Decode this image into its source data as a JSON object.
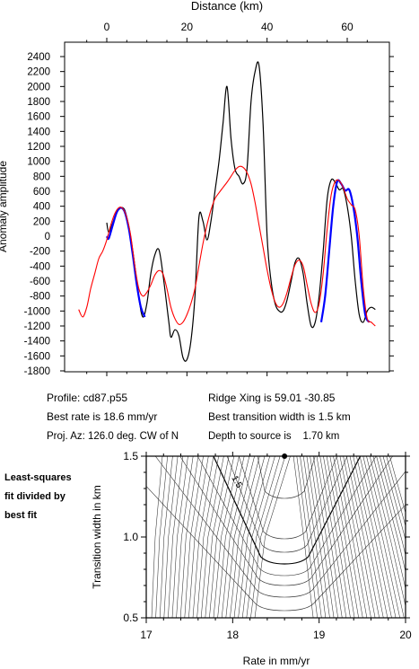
{
  "top_plot": {
    "xlabel": "Distance (km)",
    "ylabel": "Anomaly amplitude",
    "x_ticks": [
      "0",
      "20",
      "40",
      "60"
    ],
    "y_ticks": [
      "2400",
      "2200",
      "2000",
      "1800",
      "1600",
      "1400",
      "1200",
      "1000",
      "800",
      "600",
      "400",
      "200",
      "0",
      "-200",
      "-400",
      "-600",
      "-800",
      "-1000",
      "-1200",
      "-1400",
      "-1600",
      "-1800"
    ]
  },
  "info": {
    "profile": "Profile: cd87.p55",
    "best_rate": "Best rate is 18.6 mm/yr",
    "proj_az": "Proj. Az: 126.0 deg. CW of N",
    "ridge_xing": "Ridge Xing is 59.01 -30.85",
    "best_width": "Best transition width is 1.5 km",
    "depth": "Depth to source is    1.70 km"
  },
  "bottom_plot": {
    "side_note": [
      "Least-squares",
      "fit divided by",
      "best fit"
    ],
    "xlabel": "Rate in mm/yr",
    "ylabel": "Transition width in km",
    "x_ticks": [
      "17",
      "18",
      "19",
      "20"
    ],
    "y_ticks": [
      "1.5",
      "1.0",
      "0.5"
    ],
    "contour_label": "1.5"
  },
  "chart_data": [
    {
      "type": "line",
      "xlabel": "Distance (km)",
      "ylabel": "Anomaly amplitude",
      "xlim": [
        -7,
        68
      ],
      "ylim": [
        -1800,
        2500
      ],
      "colors": {
        "observed": "#000000",
        "model": "#ff0000",
        "fit": "#0000ff"
      },
      "series": [
        {
          "key": "observed",
          "x": [
            0,
            0.5,
            1.5,
            2.5,
            4,
            5,
            6.5,
            8,
            9,
            10,
            11,
            12,
            13,
            14,
            15.5,
            16,
            17,
            18,
            19,
            20,
            21,
            22,
            23,
            24,
            25,
            26,
            27,
            28,
            29,
            30,
            31,
            32,
            33,
            34,
            35,
            36,
            37,
            38,
            39,
            40,
            41,
            42,
            43,
            44,
            45,
            46,
            47,
            48,
            49,
            50,
            51,
            52,
            53,
            54,
            55,
            56,
            57,
            58,
            59,
            60,
            61,
            62,
            63,
            64,
            65,
            66,
            67
          ],
          "y": [
            180,
            50,
            180,
            320,
            380,
            250,
            -200,
            -820,
            -1080,
            -900,
            -500,
            -250,
            -180,
            -500,
            -1150,
            -1350,
            -1250,
            -1330,
            -1620,
            -1650,
            -1400,
            -800,
            250,
            200,
            -50,
            200,
            600,
            1000,
            1500,
            2000,
            1300,
            900,
            800,
            700,
            900,
            1800,
            2200,
            2280,
            1500,
            0,
            -600,
            -900,
            -1000,
            -1000,
            -850,
            -600,
            -350,
            -300,
            -500,
            -900,
            -1200,
            -1150,
            -800,
            -200,
            500,
            750,
            720,
            620,
            630,
            400,
            0,
            -600,
            -1050,
            -1150,
            -1000,
            -950,
            -980
          ]
        },
        {
          "key": "model",
          "x": [
            -7,
            -6,
            -5,
            -4,
            -3,
            -2,
            -1,
            0,
            1,
            2,
            3,
            4,
            5,
            6,
            7,
            8,
            9,
            10,
            11,
            12,
            13,
            14,
            15,
            16,
            17,
            18,
            19,
            20,
            21,
            22,
            23,
            24,
            25,
            26,
            27,
            28,
            29,
            30,
            31,
            32,
            33,
            34,
            35,
            36,
            37,
            38,
            39,
            40,
            41,
            42,
            43,
            44,
            45,
            46,
            47,
            48,
            49,
            50,
            51,
            52,
            53,
            54,
            55,
            56,
            57,
            58,
            59,
            60,
            61,
            62,
            63,
            64,
            65,
            66,
            67
          ],
          "y": [
            -980,
            -1080,
            -950,
            -700,
            -500,
            -300,
            -200,
            -50,
            150,
            300,
            380,
            370,
            250,
            0,
            -400,
            -700,
            -800,
            -750,
            -650,
            -520,
            -460,
            -500,
            -700,
            -950,
            -1100,
            -1180,
            -1150,
            -1050,
            -900,
            -700,
            -400,
            -100,
            150,
            350,
            500,
            580,
            650,
            720,
            800,
            880,
            930,
            920,
            850,
            700,
            450,
            150,
            -150,
            -450,
            -700,
            -880,
            -950,
            -900,
            -750,
            -550,
            -380,
            -320,
            -400,
            -650,
            -900,
            -1020,
            -900,
            -500,
            100,
            550,
            730,
            740,
            650,
            500,
            420,
            350,
            0,
            -700,
            -1100,
            -1150,
            -1200
          ]
        },
        {
          "key": "fit",
          "segments": [
            {
              "x": [
                0,
                0.5,
                1.5,
                2.5,
                3.5,
                4.5,
                5.5,
                6.5,
                7.5,
                8.5,
                9.5
              ],
              "y": [
                0,
                -30,
                150,
                320,
                380,
                320,
                100,
                -250,
                -650,
                -950,
                -1080
              ]
            },
            {
              "x": [
                53.5,
                54.5,
                55.5,
                56.5,
                57.5,
                58.5,
                59.5,
                60.5,
                61.5,
                62.5,
                63.5,
                64.5,
                65.5
              ],
              "y": [
                -1150,
                -800,
                -200,
                400,
                730,
                700,
                610,
                620,
                400,
                0,
                -600,
                -1050,
                -1150
              ]
            }
          ]
        }
      ]
    },
    {
      "type": "contour",
      "xlabel": "Rate in mm/yr",
      "ylabel": "Transition width in km",
      "xlim": [
        17,
        20
      ],
      "ylim": [
        0.5,
        1.5
      ],
      "best_fit": {
        "rate": 18.6,
        "width": 1.5
      }
    }
  ]
}
